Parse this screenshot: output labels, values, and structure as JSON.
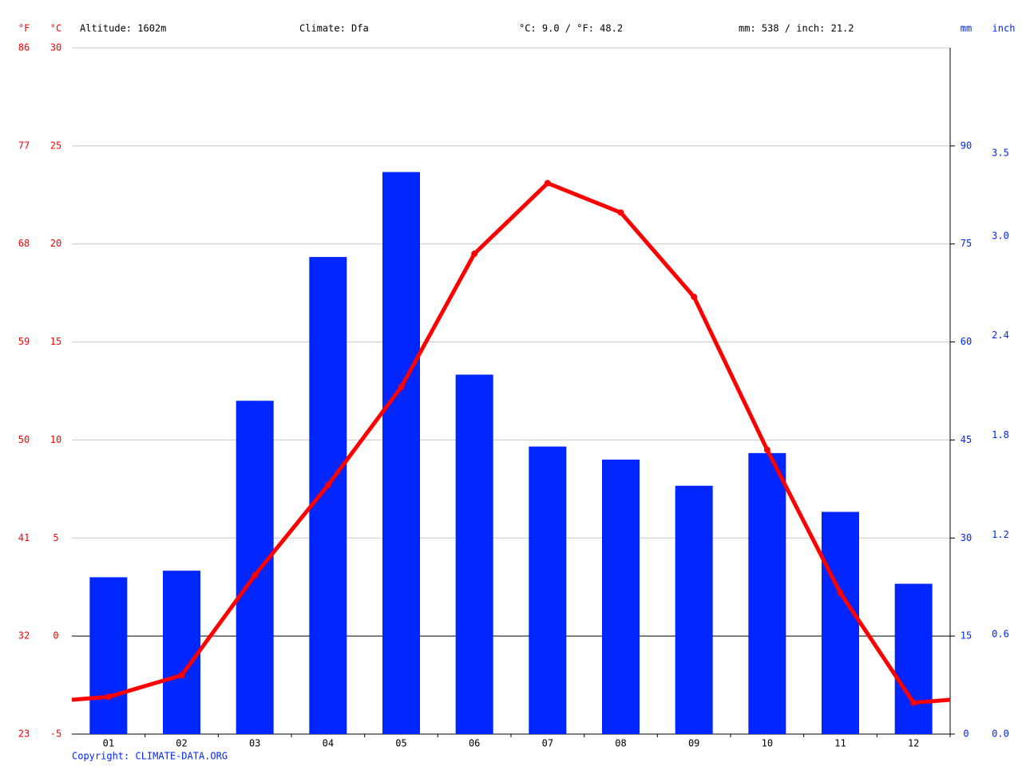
{
  "chart_data": {
    "type": "combo",
    "annotations": [
      "Altitude: 1602m",
      "Climate: Dfa",
      "°C: 9.0 / °F: 48.2",
      "mm: 538 / inch: 21.2"
    ],
    "ylabel": "°C",
    "y2label": "mm",
    "y3label": "°F",
    "y4label": "inch",
    "footer": "Copyright: CLIMATE-DATA.ORG",
    "categories": [
      "01",
      "02",
      "03",
      "04",
      "05",
      "06",
      "07",
      "08",
      "09",
      "10",
      "11",
      "12"
    ],
    "series": [
      {
        "type": "bar",
        "axis": "y2",
        "color": "#0026ff",
        "values": [
          24,
          25,
          51,
          73,
          86,
          55,
          44,
          42,
          38,
          43,
          34,
          23
        ]
      },
      {
        "type": "line",
        "color": "#ff0000",
        "values": [
          -3.1,
          -2.0,
          3.1,
          7.7,
          12.7,
          19.5,
          23.1,
          21.6,
          17.3,
          9.5,
          2.2,
          -3.4
        ]
      }
    ],
    "ylim": [
      -5,
      30
    ],
    "yticks": [
      -5,
      0,
      5,
      10,
      15,
      20,
      25,
      30
    ],
    "y2lim": [
      0,
      105
    ],
    "y2ticks": [
      0,
      15,
      30,
      45,
      60,
      75,
      90
    ],
    "y3lim": [
      23,
      86
    ],
    "y3ticks": [
      23,
      32,
      41,
      50,
      59,
      68,
      77,
      86
    ],
    "y4lim": [
      0,
      4.134
    ],
    "y4ticks": [
      {
        "value": 0,
        "label": "0.0"
      },
      0.6,
      1.2,
      1.8,
      2.4,
      {
        "value": 3.0,
        "label": "3.0"
      },
      3.5
    ],
    "left_color": "#ff0000",
    "right_color": "#0026ff",
    "grid": true
  }
}
